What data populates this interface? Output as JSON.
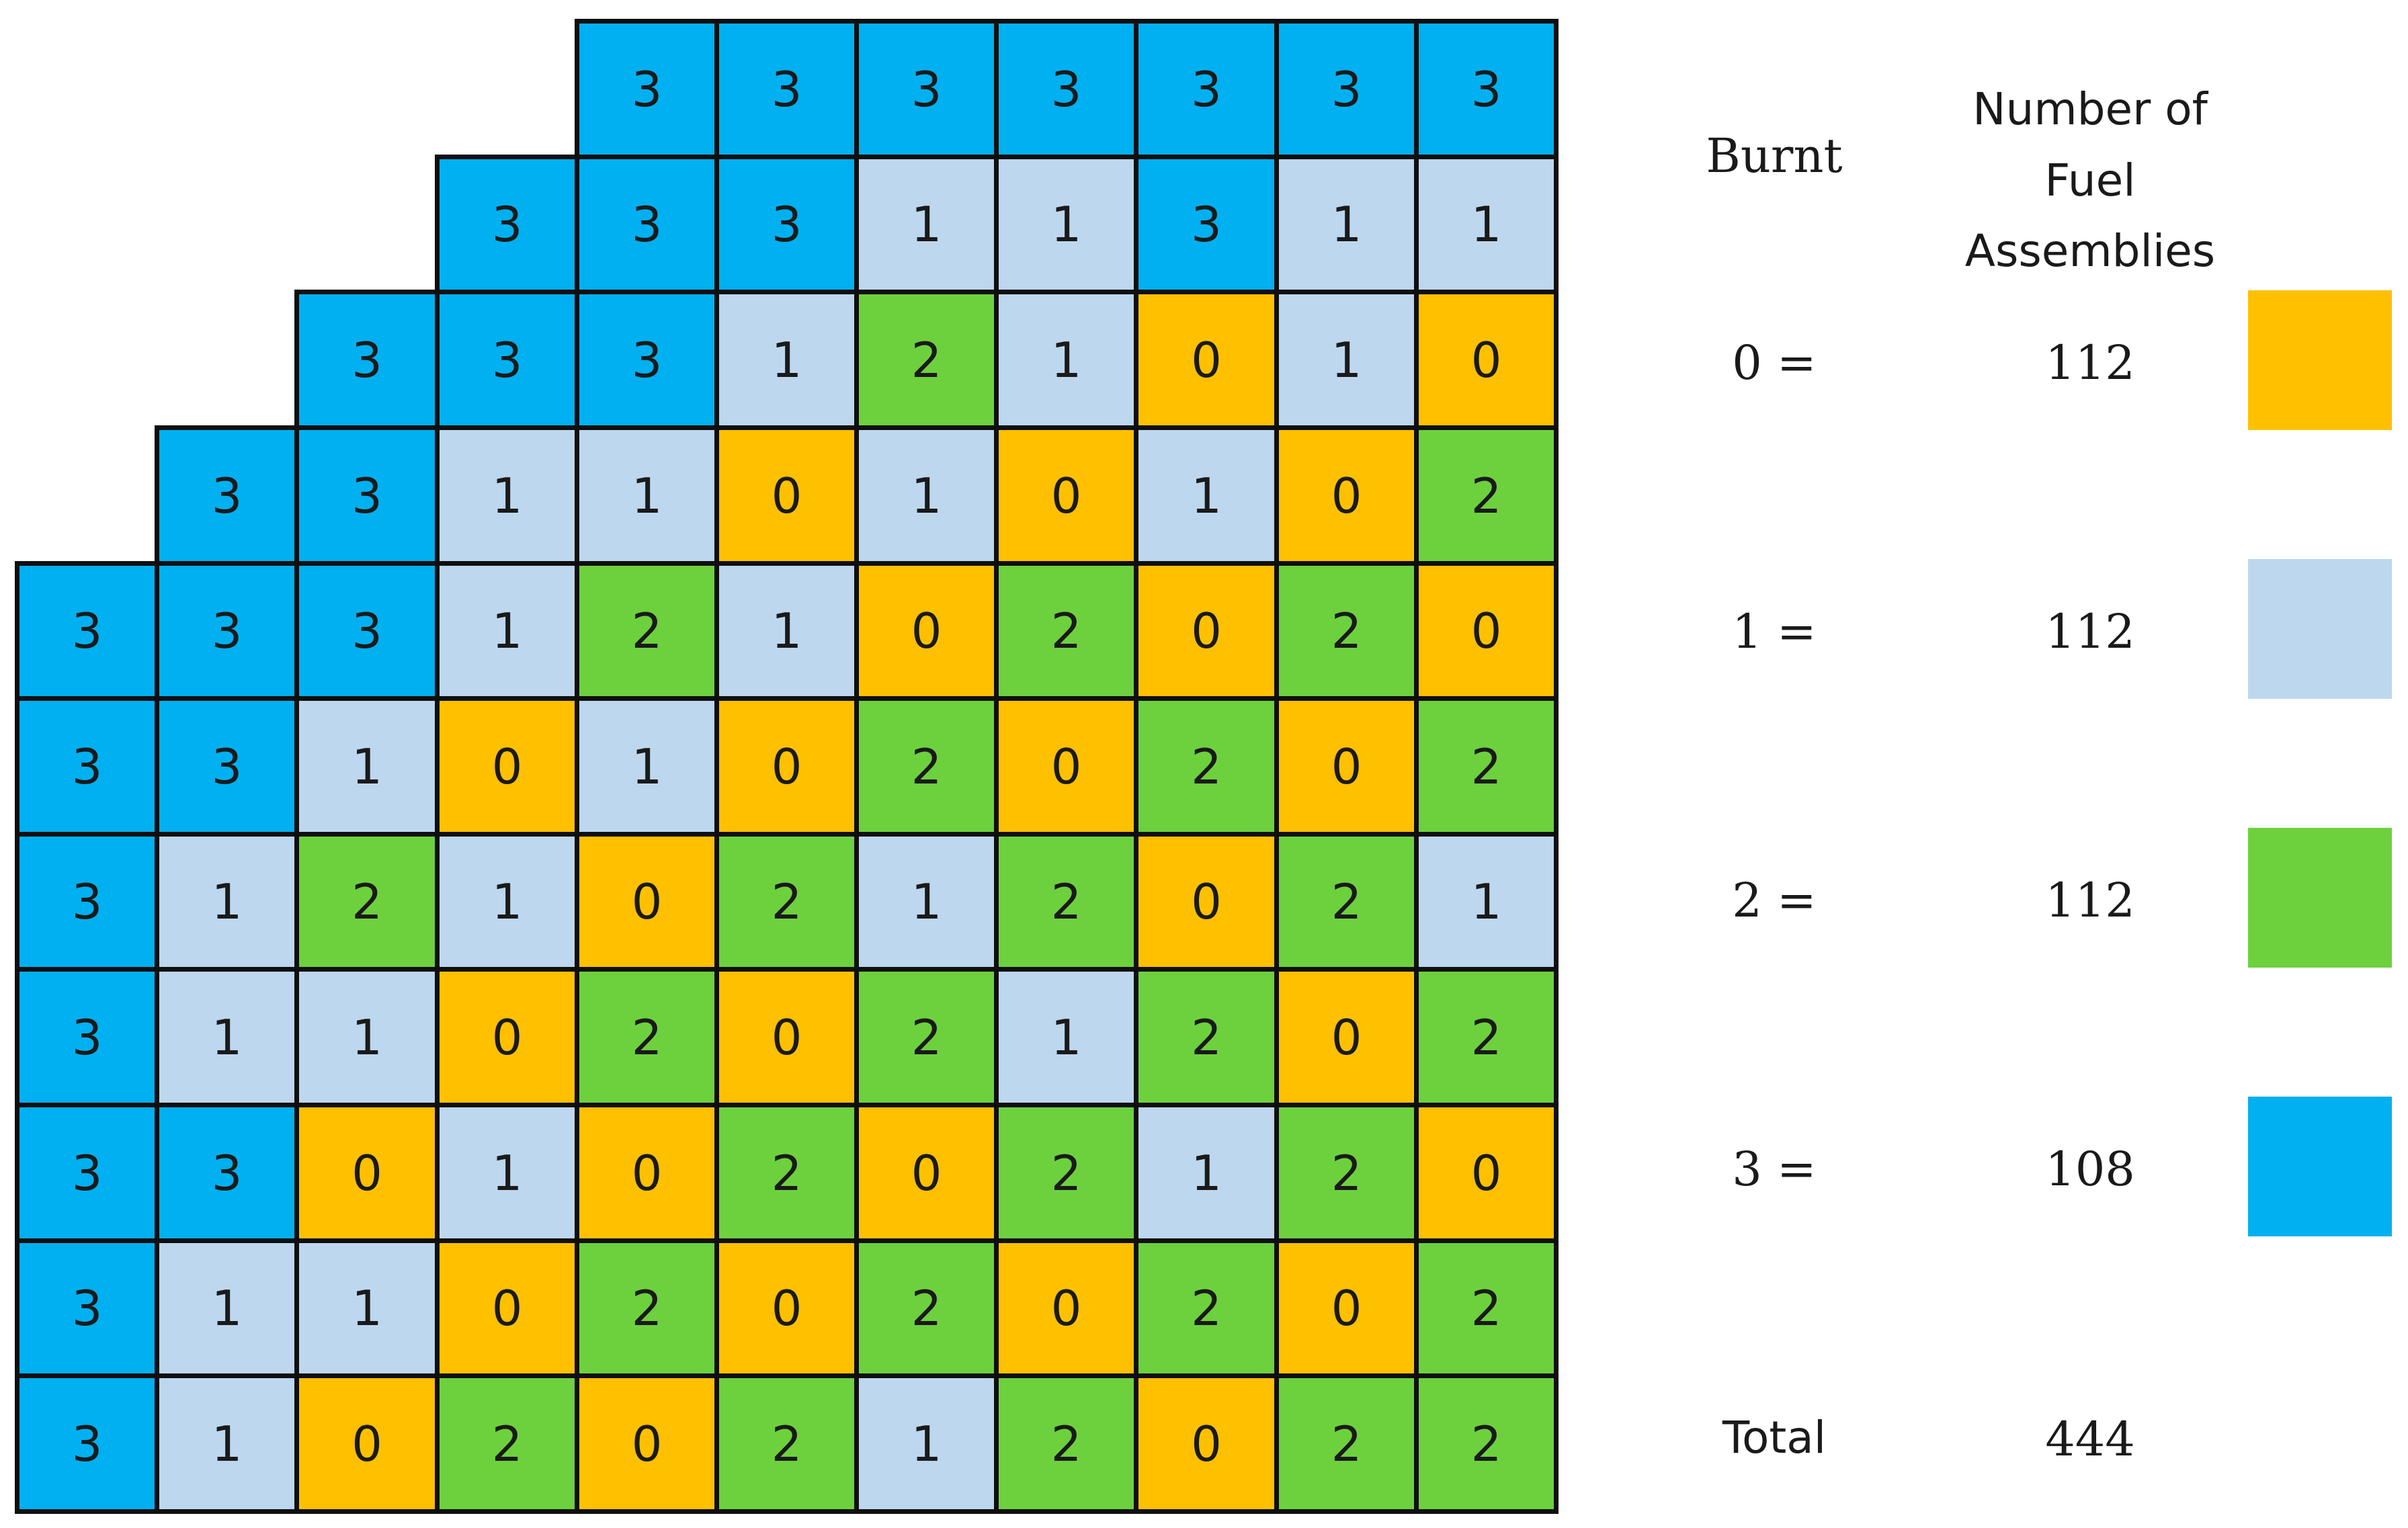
{
  "colors": {
    "burnt_0": "#FFC000",
    "burnt_1": "#BDD7EE",
    "burnt_2": "#6DD13E",
    "burnt_3": "#00B0F0",
    "grid_line": "#0F0F0F"
  },
  "core_map": {
    "columns": 11,
    "rows": [
      [
        null,
        null,
        null,
        null,
        3,
        3,
        3,
        3,
        3,
        3,
        3
      ],
      [
        null,
        null,
        null,
        3,
        3,
        3,
        1,
        1,
        3,
        1,
        1
      ],
      [
        null,
        null,
        3,
        3,
        3,
        1,
        2,
        1,
        0,
        1,
        0
      ],
      [
        null,
        3,
        3,
        1,
        1,
        0,
        1,
        0,
        1,
        0,
        2
      ],
      [
        3,
        3,
        3,
        1,
        2,
        1,
        0,
        2,
        0,
        2,
        0
      ],
      [
        3,
        3,
        1,
        0,
        1,
        0,
        2,
        0,
        2,
        0,
        2
      ],
      [
        3,
        1,
        2,
        1,
        0,
        2,
        1,
        2,
        0,
        2,
        1
      ],
      [
        3,
        1,
        1,
        0,
        2,
        0,
        2,
        1,
        2,
        0,
        2
      ],
      [
        3,
        3,
        0,
        1,
        0,
        2,
        0,
        2,
        1,
        2,
        0
      ],
      [
        3,
        1,
        1,
        0,
        2,
        0,
        2,
        0,
        2,
        0,
        2
      ],
      [
        3,
        1,
        0,
        2,
        0,
        2,
        1,
        2,
        0,
        2,
        2
      ]
    ]
  },
  "legend": {
    "header_burnt": "Burnt",
    "header_count": "Number of Fuel Assemblies",
    "rows": [
      {
        "label": "0 =",
        "count": "112",
        "color_key": "burnt_0"
      },
      {
        "label": "1 =",
        "count": "112",
        "color_key": "burnt_1"
      },
      {
        "label": "2 =",
        "count": "112",
        "color_key": "burnt_2"
      },
      {
        "label": "3 =",
        "count": "108",
        "color_key": "burnt_3"
      }
    ],
    "total_label": "Total",
    "total_value": "444"
  }
}
